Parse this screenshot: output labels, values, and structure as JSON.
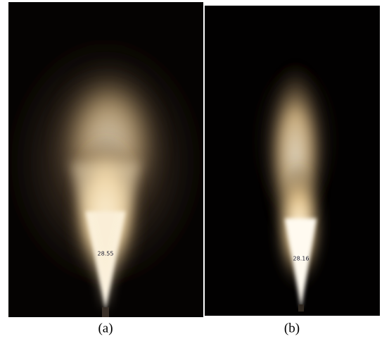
{
  "panels": [
    {
      "label": "(a)",
      "annotation": "28.55"
    },
    {
      "label": "(b)",
      "annotation": "28.16"
    }
  ]
}
